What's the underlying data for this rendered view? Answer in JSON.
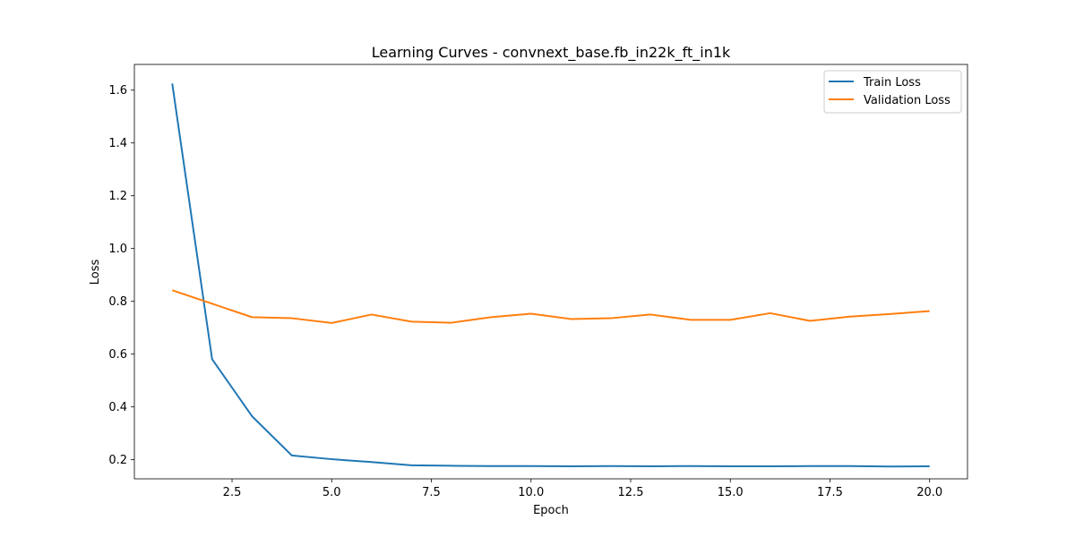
{
  "chart_data": {
    "type": "line",
    "title": "Learning Curves - convnext_base.fb_in22k_ft_in1k",
    "xlabel": "Epoch",
    "ylabel": "Loss",
    "xlim": [
      0.05,
      20.95
    ],
    "ylim": [
      0.1276,
      1.6974
    ],
    "x_ticks": [
      2.5,
      5.0,
      7.5,
      10.0,
      12.5,
      15.0,
      17.5,
      20.0
    ],
    "x_tick_labels": [
      "2.5",
      "5.0",
      "7.5",
      "10.0",
      "12.5",
      "15.0",
      "17.5",
      "20.0"
    ],
    "y_ticks": [
      0.2,
      0.4,
      0.6,
      0.8,
      1.0,
      1.2,
      1.4,
      1.6
    ],
    "y_tick_labels": [
      "0.2",
      "0.4",
      "0.6",
      "0.8",
      "1.0",
      "1.2",
      "1.4",
      "1.6"
    ],
    "grid": false,
    "legend_position": "top-right",
    "x": [
      1,
      2,
      3,
      4,
      5,
      6,
      7,
      8,
      9,
      10,
      11,
      12,
      13,
      14,
      15,
      16,
      17,
      18,
      19,
      20
    ],
    "series": [
      {
        "name": "Train Loss",
        "color": "#1f77b4",
        "values": [
          1.625,
          0.581,
          0.365,
          0.216,
          0.202,
          0.191,
          0.179,
          0.177,
          0.176,
          0.176,
          0.175,
          0.176,
          0.175,
          0.176,
          0.175,
          0.175,
          0.176,
          0.176,
          0.174,
          0.175
        ]
      },
      {
        "name": "Validation Loss",
        "color": "#ff7f0e",
        "values": [
          0.842,
          0.791,
          0.74,
          0.736,
          0.718,
          0.75,
          0.723,
          0.719,
          0.74,
          0.753,
          0.733,
          0.736,
          0.75,
          0.73,
          0.73,
          0.755,
          0.726,
          0.742,
          0.752,
          0.763
        ]
      }
    ]
  }
}
